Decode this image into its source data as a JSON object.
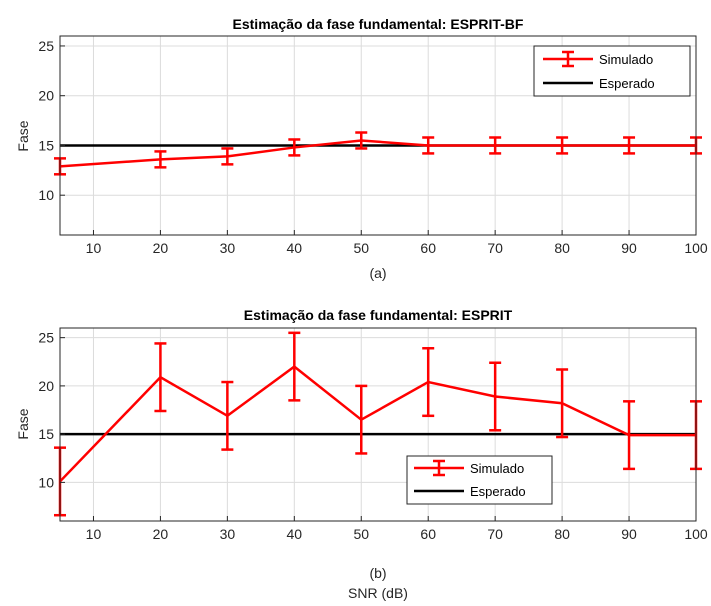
{
  "chart_data": [
    {
      "type": "line",
      "title": "Estimação da fase fundamental: ESPRIT-BF",
      "xlabel": "(a)",
      "ylabel": "Fase",
      "xlim": [
        5,
        100
      ],
      "ylim": [
        6,
        26
      ],
      "xticks": [
        10,
        20,
        30,
        40,
        50,
        60,
        70,
        80,
        90,
        100
      ],
      "yticks": [
        10,
        15,
        20,
        25
      ],
      "grid": true,
      "legend_position": "top-right",
      "series": [
        {
          "name": "Simulado",
          "style": "errorbar",
          "color": "#ff0000",
          "x": [
            5,
            20,
            30,
            40,
            50,
            60,
            70,
            80,
            90,
            100
          ],
          "y": [
            12.9,
            13.6,
            13.9,
            14.8,
            15.5,
            15.0,
            15.0,
            15.0,
            15.0,
            15.0
          ],
          "err": [
            0.8,
            0.8,
            0.8,
            0.8,
            0.8,
            0.8,
            0.8,
            0.8,
            0.8,
            0.8
          ]
        },
        {
          "name": "Esperado",
          "style": "line",
          "color": "#000000",
          "x": [
            5,
            100
          ],
          "y": [
            15,
            15
          ]
        }
      ]
    },
    {
      "type": "line",
      "title": "Estimação da fase fundamental: ESPRIT",
      "xlabel": "(b)",
      "ylabel": "Fase",
      "xlabel2": "SNR (dB)",
      "xlim": [
        5,
        100
      ],
      "ylim": [
        6,
        26
      ],
      "xticks": [
        10,
        20,
        30,
        40,
        50,
        60,
        70,
        80,
        90,
        100
      ],
      "yticks": [
        10,
        15,
        20,
        25
      ],
      "grid": true,
      "legend_position": "bottom-center",
      "series": [
        {
          "name": "Simulado",
          "style": "errorbar",
          "color": "#ff0000",
          "x": [
            5,
            20,
            30,
            40,
            50,
            60,
            70,
            80,
            90,
            100
          ],
          "y": [
            10.1,
            20.9,
            16.9,
            22.0,
            16.5,
            20.4,
            18.9,
            18.2,
            14.9,
            14.9
          ],
          "err": [
            3.5,
            3.5,
            3.5,
            3.5,
            3.5,
            3.5,
            3.5,
            3.5,
            3.5,
            3.5
          ]
        },
        {
          "name": "Esperado",
          "style": "line",
          "color": "#000000",
          "x": [
            5,
            100
          ],
          "y": [
            15,
            15
          ]
        }
      ]
    }
  ]
}
